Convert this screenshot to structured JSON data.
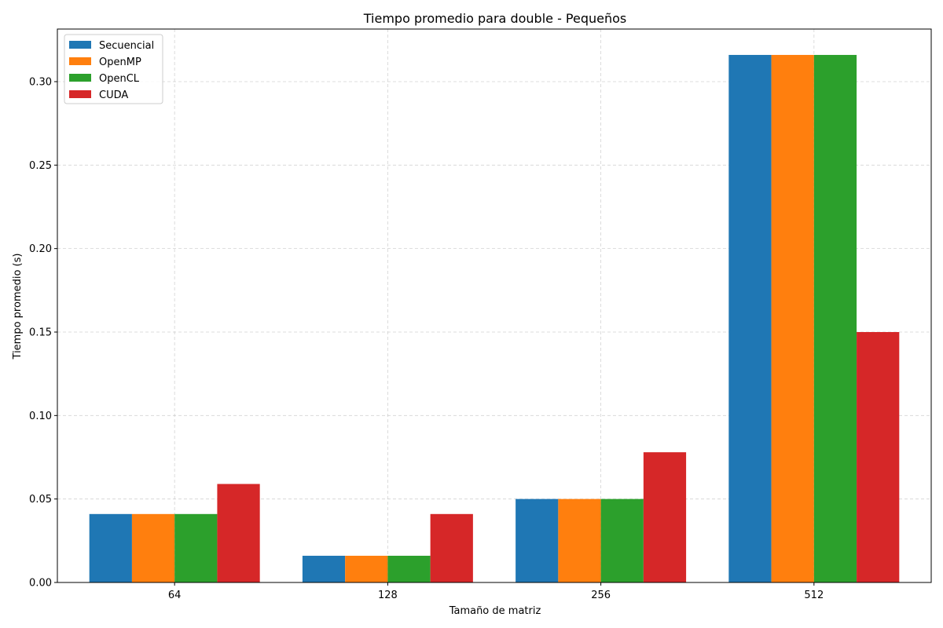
{
  "chart_data": {
    "type": "bar",
    "title": "Tiempo promedio para double - Pequeños",
    "xlabel": "Tamaño de matriz",
    "ylabel": "Tiempo promedio (s)",
    "categories": [
      "64",
      "128",
      "256",
      "512"
    ],
    "series": [
      {
        "name": "Secuencial",
        "color": "#1f77b4",
        "values": [
          0.041,
          0.016,
          0.05,
          0.316
        ]
      },
      {
        "name": "OpenMP",
        "color": "#ff7f0e",
        "values": [
          0.041,
          0.016,
          0.05,
          0.316
        ]
      },
      {
        "name": "OpenCL",
        "color": "#2ca02c",
        "values": [
          0.041,
          0.016,
          0.05,
          0.316
        ]
      },
      {
        "name": "CUDA",
        "color": "#d62728",
        "values": [
          0.059,
          0.041,
          0.078,
          0.15
        ]
      }
    ],
    "ylim": [
      0,
      0.3315
    ],
    "yticks": [
      "0.00",
      "0.05",
      "0.10",
      "0.15",
      "0.20",
      "0.25",
      "0.30"
    ],
    "grid": true,
    "legend_position": "top-left"
  }
}
